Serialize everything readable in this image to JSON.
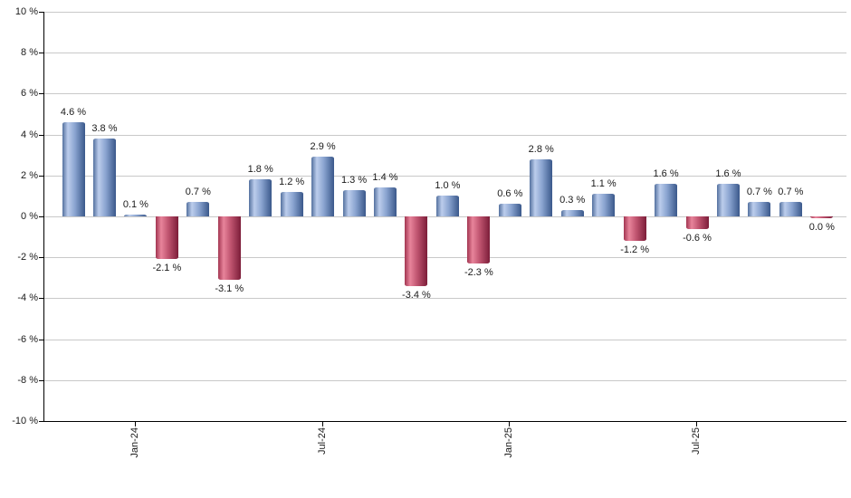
{
  "chart_data": {
    "type": "bar",
    "title": "",
    "xlabel": "",
    "ylabel": "",
    "ylim": [
      -10,
      10
    ],
    "ytick_step": 2,
    "ytick_suffix": " %",
    "value_label_suffix": " %",
    "value_label_decimals": 1,
    "grid": true,
    "legend": "none",
    "values": [
      4.6,
      3.8,
      0.1,
      -2.1,
      0.7,
      -3.1,
      1.8,
      1.2,
      2.9,
      1.3,
      1.4,
      -3.4,
      1.0,
      -2.3,
      0.6,
      2.8,
      0.3,
      1.1,
      -1.2,
      1.6,
      -0.6,
      1.6,
      0.7,
      0.7,
      0.0
    ],
    "x_ticks": [
      {
        "label": "Jan-24",
        "index": 2
      },
      {
        "label": "Jul-24",
        "index": 8
      },
      {
        "label": "Jan-25",
        "index": 14
      },
      {
        "label": "Jul-25",
        "index": 20
      }
    ],
    "colors": {
      "positive_edge_left": "#54719f",
      "positive_highlight": "#bccdec",
      "positive_mid": "#8aa4d0",
      "positive_edge_right": "#3a588b",
      "negative_edge_left": "#a23551",
      "negative_highlight": "#e8849b",
      "negative_mid": "#c05570",
      "negative_edge_right": "#7c1d39",
      "gridline": "#c9c9c9",
      "axis": "#000000",
      "text": "#1a1a1a"
    }
  }
}
